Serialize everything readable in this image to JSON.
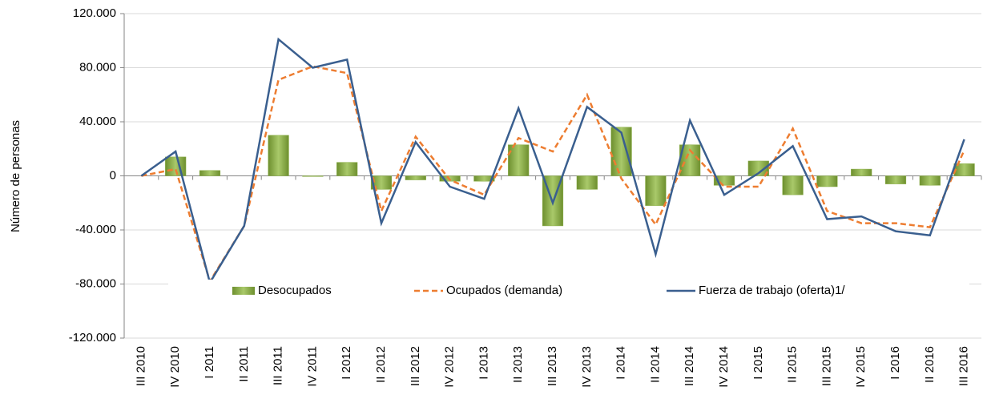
{
  "chart_data": {
    "type": "bar-line",
    "ylabel": "Número de personas",
    "categories": [
      "III 2010",
      "IV 2010",
      "I 2011",
      "II 2011",
      "III 2011",
      "IV 2011",
      "I 2012",
      "II 2012",
      "III 2012",
      "IV 2012",
      "I 2013",
      "II 2013",
      "III 2013",
      "IV 2013",
      "I 2014",
      "II 2014",
      "III 2014",
      "IV 2014",
      "I 2015",
      "II 2015",
      "III 2015",
      "IV 2015",
      "I 2016",
      "II 2016",
      "III 2016"
    ],
    "series": [
      {
        "name": "Desocupados",
        "kind": "bar",
        "color": "#8db04a",
        "values": [
          0,
          14000,
          4000,
          0,
          30000,
          -500,
          10000,
          -10000,
          -3000,
          -4000,
          -4000,
          23000,
          -37000,
          -10000,
          36000,
          -22000,
          23000,
          -7000,
          11000,
          -14000,
          -8000,
          5000,
          -6000,
          -7000,
          9000
        ]
      },
      {
        "name": "Ocupados (demanda)",
        "kind": "dashed-line",
        "color": "#ed7d31",
        "values": [
          0,
          5000,
          -78000,
          -37000,
          71000,
          81000,
          76000,
          -26000,
          29000,
          -3000,
          -14000,
          28000,
          18000,
          60000,
          -2000,
          -36000,
          19000,
          -8000,
          -8000,
          35000,
          -26000,
          -35000,
          -35000,
          -38000,
          19000
        ]
      },
      {
        "name": "Fuerza de trabajo (oferta)1/",
        "kind": "line",
        "color": "#3a5f8f",
        "values": [
          0,
          18000,
          -79000,
          -37000,
          101000,
          80000,
          86000,
          -35000,
          25000,
          -8000,
          -17000,
          50000,
          -20000,
          51000,
          32000,
          -58000,
          41000,
          -14000,
          2000,
          22000,
          -32000,
          -30000,
          -41000,
          -44000,
          27000
        ]
      }
    ],
    "ylim": [
      -120000,
      120000
    ],
    "yticks": [
      {
        "value": -120000,
        "label": "-120.000"
      },
      {
        "value": -80000,
        "label": "-80.000"
      },
      {
        "value": -40000,
        "label": "-40.000"
      },
      0,
      {
        "value": 40000,
        "label": "40.000"
      },
      {
        "value": 80000,
        "label": "80.000"
      },
      {
        "value": 120000,
        "label": "120.000"
      }
    ],
    "grid": true,
    "legend": "bottom"
  }
}
